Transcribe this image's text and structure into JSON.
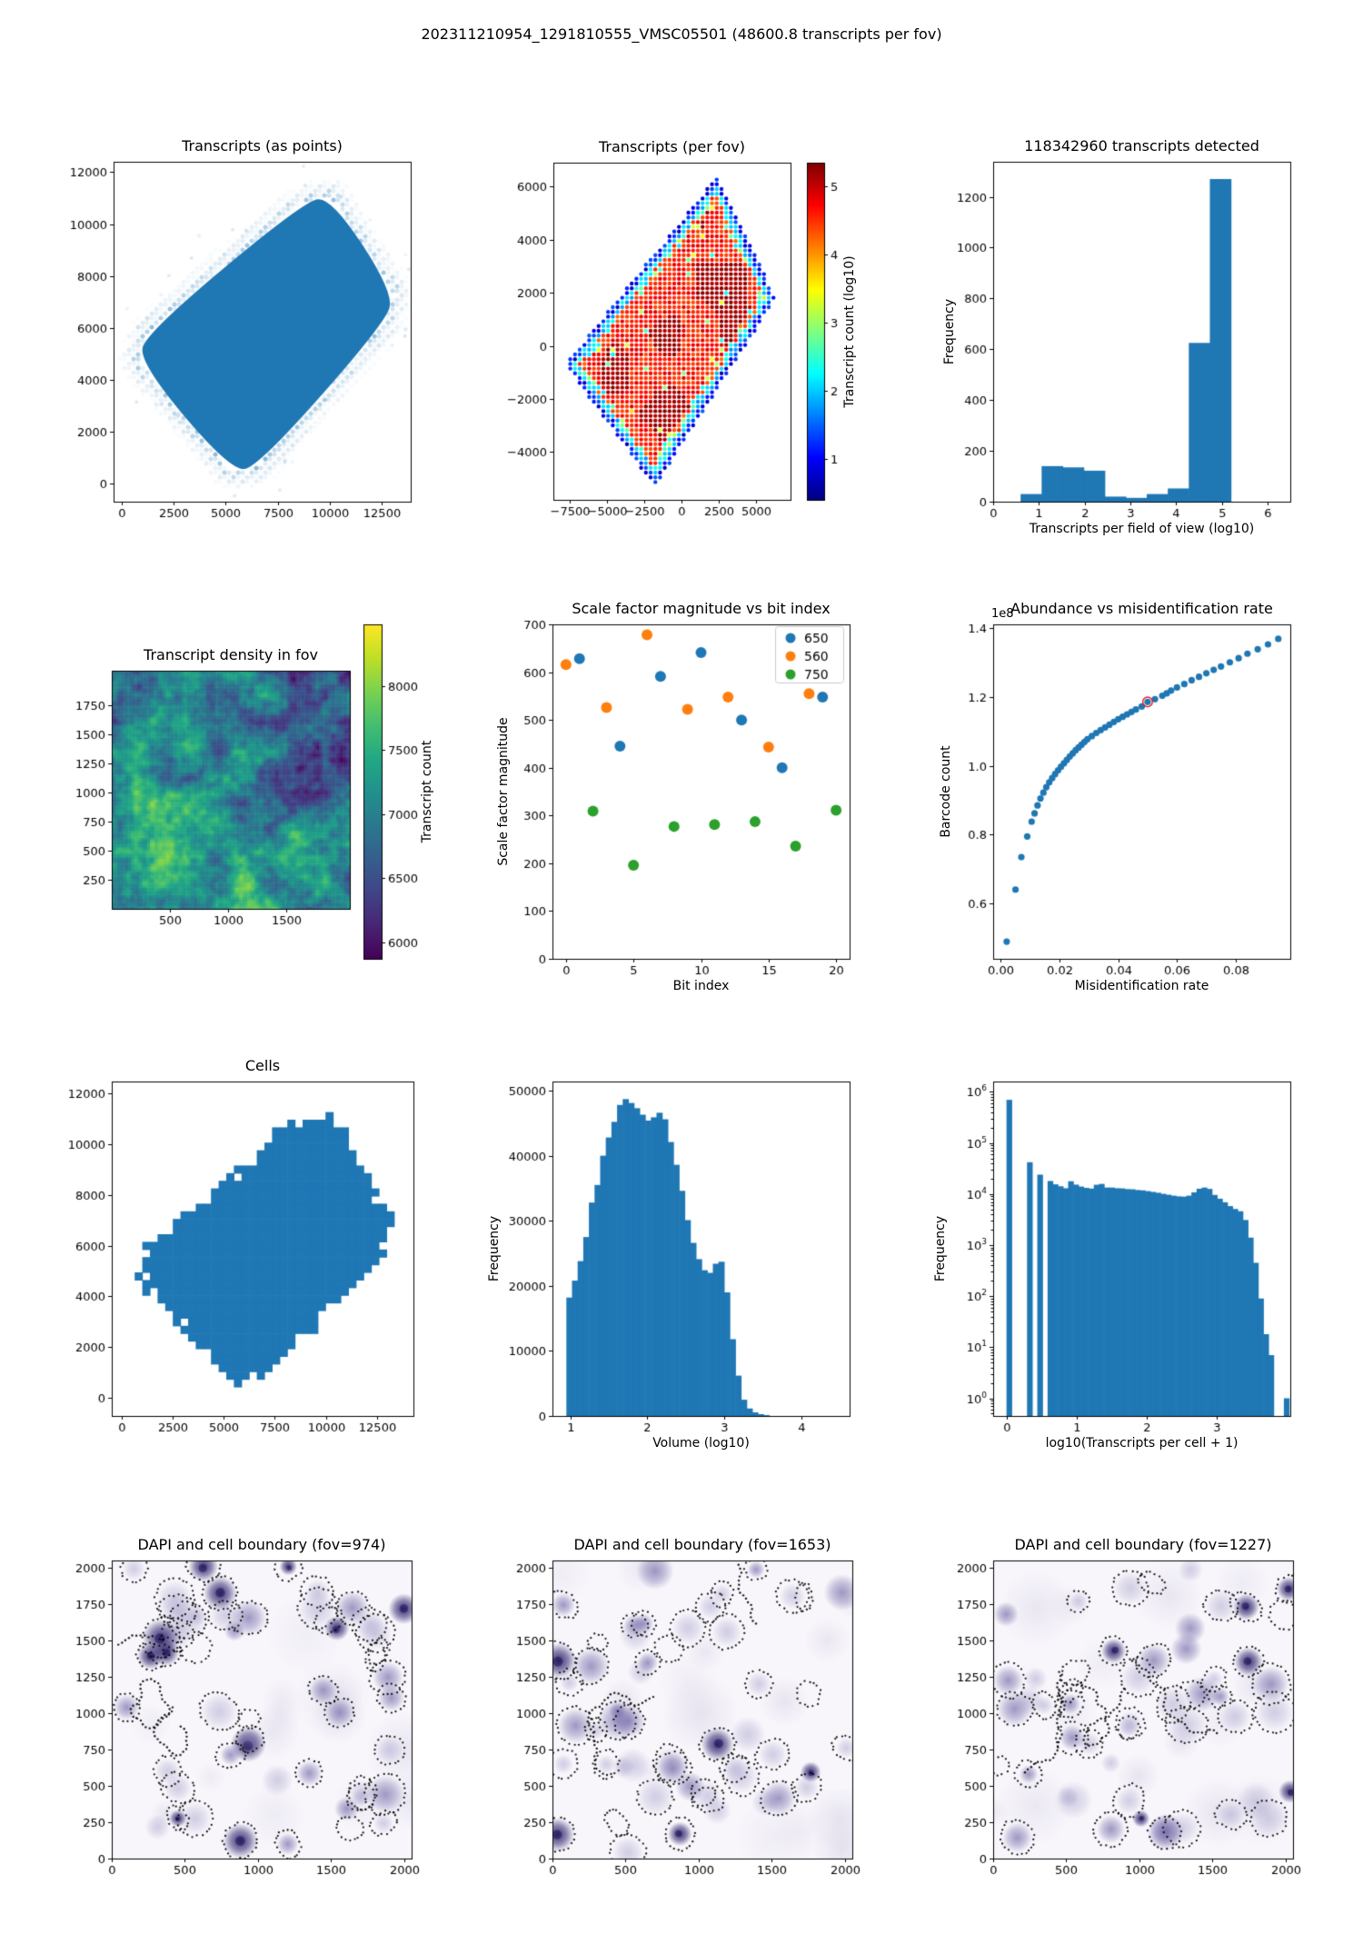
{
  "figure_title": "202311210954_1291810555_VMSC05501 (48600.8 transcripts per fov)",
  "colors": {
    "primary_blue": "#1f77b4",
    "orange": "#ff7f0e",
    "green": "#2ca02c",
    "highlight_red": "#e31a1c",
    "dapi_background": "#f8f6fb",
    "nucleus_purple": "#5e4f9b",
    "nucleus_dark": "#31266e"
  },
  "chart_data": [
    {
      "id": "transcripts_points",
      "type": "scatter",
      "title": "Transcripts (as points)",
      "xlim": [
        -400,
        13900
      ],
      "ylim": [
        -700,
        12400
      ],
      "xticks": [
        0,
        2500,
        5000,
        7500,
        10000,
        12500
      ],
      "yticks": [
        0,
        2000,
        4000,
        6000,
        8000,
        10000,
        12000
      ],
      "shape_corners": [
        [
          5800,
          -50
        ],
        [
          13450,
          6900
        ],
        [
          9700,
          11500
        ],
        [
          250,
          5200
        ]
      ],
      "description": "dense solid blue tissue blob of transcript positions with speckled halo along edges"
    },
    {
      "id": "transcripts_per_fov",
      "type": "scatter",
      "title": "Transcripts (per fov)",
      "xlim": [
        -8600,
        7300
      ],
      "ylim": [
        -5800,
        6900
      ],
      "xticks": [
        -7500,
        -5000,
        -2500,
        0,
        2500,
        5000
      ],
      "yticks": [
        -4000,
        -2000,
        0,
        2000,
        4000,
        6000
      ],
      "shape_corners": [
        [
          -1800,
          -5300
        ],
        [
          6300,
          1800
        ],
        [
          2400,
          6400
        ],
        [
          -7800,
          -700
        ]
      ],
      "colorbar": {
        "label": "Transcript count (log10)",
        "ticks": [
          1,
          2,
          3,
          4,
          5
        ],
        "vmin": 0.4,
        "vmax": 5.35,
        "cmap": "jet"
      },
      "description": "dot grid per field of view, red interior (~1e5 transcripts), cyan/blue rim (~1e1-1e2)"
    },
    {
      "id": "transcripts_hist",
      "type": "bar",
      "title": "118342960 transcripts detected",
      "xlabel": "Transcripts per field of view (log10)",
      "ylabel": "Frequency",
      "xlim": [
        0,
        6.5
      ],
      "ylim": [
        0,
        1338
      ],
      "xticks": [
        0,
        1,
        2,
        3,
        4,
        5,
        6
      ],
      "yticks": [
        0,
        200,
        400,
        600,
        800,
        1000,
        1200
      ],
      "bin_start": 0.6,
      "bin_width": 0.46,
      "values": [
        30,
        140,
        135,
        122,
        20,
        15,
        30,
        52,
        625,
        1270
      ]
    },
    {
      "id": "density_heatmap",
      "type": "heatmap",
      "title": "Transcript density in fov",
      "xlim": [
        0,
        2048
      ],
      "ylim": [
        0,
        2048
      ],
      "xticks": [
        500,
        1000,
        1500
      ],
      "yticks": [
        250,
        500,
        750,
        1000,
        1250,
        1500,
        1750
      ],
      "colorbar": {
        "label": "Transcript count",
        "ticks": [
          6000,
          6500,
          7000,
          7500,
          8000
        ],
        "vmin": 5870,
        "vmax": 8480,
        "cmap": "viridis"
      },
      "description": "viridis noise map, brighter (higher counts ~8400) bottom-left, darker (~6000) top-right"
    },
    {
      "id": "scale_factors",
      "type": "scatter",
      "title": "Scale factor magnitude vs bit index",
      "xlabel": "Bit index",
      "ylabel": "Scale factor magnitude",
      "xlim": [
        -1,
        21
      ],
      "ylim": [
        0,
        700
      ],
      "xticks": [
        0,
        5,
        10,
        15,
        20
      ],
      "yticks": [
        0,
        100,
        200,
        300,
        400,
        500,
        600,
        700
      ],
      "legend": [
        "650",
        "560",
        "750"
      ],
      "series": [
        {
          "name": "650",
          "color": "#1f77b4",
          "points": [
            [
              1,
              628
            ],
            [
              4,
              445
            ],
            [
              7,
              591
            ],
            [
              10,
              641
            ],
            [
              13,
              500
            ],
            [
              16,
              400
            ],
            [
              19,
              548
            ]
          ]
        },
        {
          "name": "560",
          "color": "#ff7f0e",
          "points": [
            [
              0,
              616
            ],
            [
              3,
              526
            ],
            [
              6,
              678
            ],
            [
              9,
              522
            ],
            [
              12,
              548
            ],
            [
              15,
              443
            ],
            [
              18,
              555
            ]
          ]
        },
        {
          "name": "750",
          "color": "#2ca02c",
          "points": [
            [
              2,
              309
            ],
            [
              5,
              196
            ],
            [
              8,
              277
            ],
            [
              11,
              281
            ],
            [
              14,
              287
            ],
            [
              17,
              236
            ],
            [
              20,
              311
            ]
          ]
        }
      ]
    },
    {
      "id": "abundance_misid",
      "type": "scatter",
      "title": "Abundance vs misidentification rate",
      "xlabel": "Misidentification rate",
      "ylabel": "Barcode count",
      "offset_label": "1e8",
      "xlim": [
        -0.0026,
        0.0986
      ],
      "ylim": [
        0.44,
        1.41
      ],
      "xticks": [
        0,
        0.02,
        0.04,
        0.06,
        0.08
      ],
      "xdec": 2,
      "yticks": [
        0.6,
        0.8,
        1.0,
        1.2,
        1.4
      ],
      "ydec": 1,
      "points": [
        [
          0.002,
          0.49
        ],
        [
          0.005,
          0.641
        ],
        [
          0.007,
          0.735
        ],
        [
          0.009,
          0.795
        ],
        [
          0.0105,
          0.838
        ],
        [
          0.0115,
          0.862
        ],
        [
          0.0125,
          0.885
        ],
        [
          0.0135,
          0.905
        ],
        [
          0.0145,
          0.922
        ],
        [
          0.0155,
          0.938
        ],
        [
          0.0165,
          0.952
        ],
        [
          0.0175,
          0.964
        ],
        [
          0.0185,
          0.976
        ],
        [
          0.0195,
          0.987
        ],
        [
          0.0205,
          0.997
        ],
        [
          0.0215,
          1.007
        ],
        [
          0.0225,
          1.017
        ],
        [
          0.0235,
          1.027
        ],
        [
          0.0245,
          1.036
        ],
        [
          0.0255,
          1.045
        ],
        [
          0.0265,
          1.053
        ],
        [
          0.0275,
          1.061
        ],
        [
          0.0285,
          1.069
        ],
        [
          0.0295,
          1.077
        ],
        [
          0.031,
          1.086
        ],
        [
          0.0325,
          1.095
        ],
        [
          0.034,
          1.103
        ],
        [
          0.0355,
          1.111
        ],
        [
          0.037,
          1.119
        ],
        [
          0.0385,
          1.127
        ],
        [
          0.04,
          1.135
        ],
        [
          0.0415,
          1.142
        ],
        [
          0.043,
          1.149
        ],
        [
          0.0445,
          1.156
        ],
        [
          0.046,
          1.163
        ],
        [
          0.048,
          1.172
        ],
        [
          0.05,
          1.185
        ],
        [
          0.0525,
          1.193
        ],
        [
          0.055,
          1.203
        ],
        [
          0.0565,
          1.21
        ],
        [
          0.058,
          1.218
        ],
        [
          0.06,
          1.227
        ],
        [
          0.0625,
          1.237
        ],
        [
          0.065,
          1.248
        ],
        [
          0.0675,
          1.258
        ],
        [
          0.07,
          1.268
        ],
        [
          0.0725,
          1.278
        ],
        [
          0.075,
          1.288
        ],
        [
          0.078,
          1.3
        ],
        [
          0.081,
          1.312
        ],
        [
          0.084,
          1.325
        ],
        [
          0.0875,
          1.338
        ],
        [
          0.091,
          1.352
        ],
        [
          0.0945,
          1.368
        ]
      ],
      "highlight_index": 36
    },
    {
      "id": "cells",
      "type": "scatter",
      "title": "Cells",
      "xlim": [
        -500,
        14300
      ],
      "ylim": [
        -700,
        12450
      ],
      "xticks": [
        0,
        2500,
        5000,
        7500,
        10000,
        12500
      ],
      "yticks": [
        0,
        2000,
        4000,
        6000,
        8000,
        10000,
        12000
      ],
      "shape_corners": [
        [
          6050,
          -20
        ],
        [
          13700,
          6500
        ],
        [
          9800,
          11800
        ],
        [
          120,
          5250
        ]
      ],
      "description": "solid blue blob of segmented cells with blocky fov-quantized edges"
    },
    {
      "id": "volume_hist",
      "type": "bar",
      "title": "",
      "xlabel": "Volume (log10)",
      "ylabel": "Frequency",
      "xlim": [
        0.77,
        4.62
      ],
      "ylim": [
        0,
        51400
      ],
      "xticks": [
        1,
        2,
        3,
        4
      ],
      "yticks": [
        0,
        10000,
        20000,
        30000,
        40000,
        50000
      ],
      "bin_start": 0.95,
      "bin_width": 0.073,
      "values": [
        18200,
        20800,
        23800,
        27500,
        32800,
        35500,
        40000,
        42800,
        45200,
        47800,
        48700,
        48100,
        47300,
        46300,
        45400,
        45900,
        46600,
        45600,
        42100,
        38600,
        34600,
        30100,
        26600,
        24100,
        22400,
        22000,
        23400,
        23700,
        19000,
        11800,
        6200,
        2500,
        1150,
        550,
        280,
        130
      ]
    },
    {
      "id": "transcripts_per_cell_hist",
      "type": "bar",
      "title": "",
      "xlabel": "log10(Transcripts per cell + 1)",
      "ylabel": "Frequency",
      "ylog": true,
      "xlim": [
        -0.19,
        4.05
      ],
      "ylim": [
        0.45,
        1600000
      ],
      "xticks": [
        0,
        1,
        2,
        3
      ],
      "ytick_exponents": [
        0,
        1,
        2,
        3,
        4,
        5,
        6
      ],
      "bin_start": 0,
      "bin_width": 0.0733,
      "values": [
        700000,
        0,
        0,
        0,
        42000,
        0,
        24000,
        0,
        18000,
        15500,
        14200,
        13000,
        17800,
        15300,
        14000,
        13200,
        12800,
        15200,
        15800,
        13400,
        13400,
        13000,
        12900,
        12500,
        12400,
        12000,
        11800,
        11400,
        11000,
        10600,
        10100,
        9700,
        9300,
        9000,
        8900,
        9300,
        10800,
        12700,
        13400,
        12600,
        9600,
        8100,
        6900,
        5800,
        5100,
        4600,
        3100,
        1400,
        450,
        90,
        18,
        7,
        0,
        0,
        1
      ]
    },
    {
      "id": "dapi_fov_974",
      "type": "image",
      "title": "DAPI and cell boundary (fov=974)",
      "fov": 974,
      "xlim": [
        0,
        2050
      ],
      "ylim": [
        0,
        2050
      ],
      "xticks": [
        0,
        500,
        1000,
        1500,
        2000
      ],
      "yticks": [
        0,
        250,
        500,
        750,
        1000,
        1250,
        1500,
        1750,
        2000
      ],
      "description": "inverted DAPI micrograph: lavender nuclei with black dotted cell boundary outlines"
    },
    {
      "id": "dapi_fov_1653",
      "type": "image",
      "title": "DAPI and cell boundary (fov=1653)",
      "fov": 1653,
      "xlim": [
        0,
        2050
      ],
      "ylim": [
        0,
        2050
      ],
      "xticks": [
        0,
        500,
        1000,
        1500,
        2000
      ],
      "yticks": [
        0,
        250,
        500,
        750,
        1000,
        1250,
        1500,
        1750,
        2000
      ],
      "description": "inverted DAPI micrograph: lavender nuclei with black dotted cell boundary outlines"
    },
    {
      "id": "dapi_fov_1227",
      "type": "image",
      "title": "DAPI and cell boundary (fov=1227)",
      "fov": 1227,
      "xlim": [
        0,
        2050
      ],
      "ylim": [
        0,
        2050
      ],
      "xticks": [
        0,
        500,
        1000,
        1500,
        2000
      ],
      "yticks": [
        0,
        250,
        500,
        750,
        1000,
        1250,
        1500,
        1750,
        2000
      ],
      "description": "inverted DAPI micrograph: lavender nuclei with black dotted cell boundary outlines"
    }
  ]
}
